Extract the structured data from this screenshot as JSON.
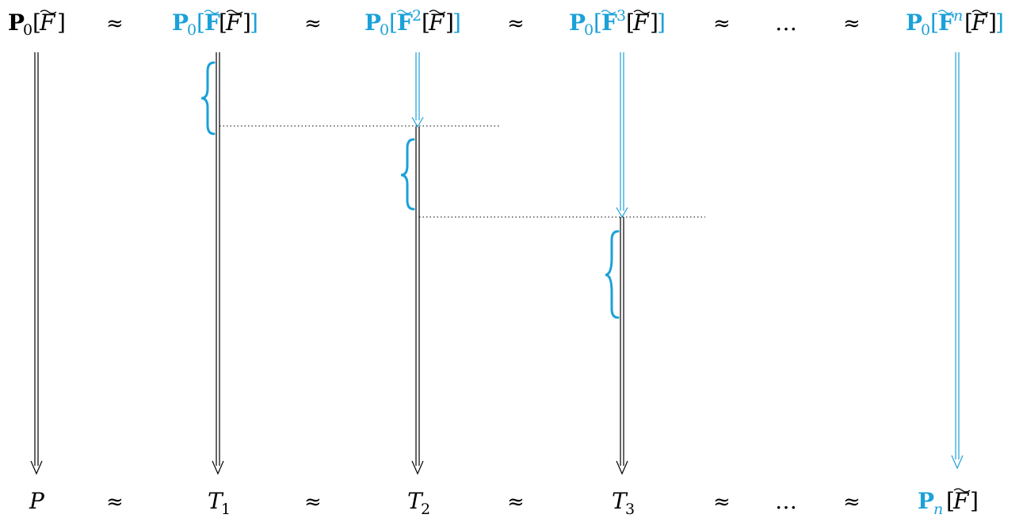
{
  "colors": {
    "black": "#000000",
    "cyan": "#1ba1d9"
  },
  "top_row": {
    "items": [
      {
        "prefix": "P",
        "prefix_sub": "0",
        "power": "",
        "inner": "F",
        "tilde_bold": false,
        "color": "black"
      },
      {
        "prefix": "P",
        "prefix_sub": "0",
        "power": "",
        "inner": "F",
        "tilde_bold": true,
        "color": "cyan"
      },
      {
        "prefix": "P",
        "prefix_sub": "0",
        "power": "2",
        "inner": "F",
        "tilde_bold": true,
        "color": "cyan"
      },
      {
        "prefix": "P",
        "prefix_sub": "0",
        "power": "3",
        "inner": "F",
        "tilde_bold": true,
        "color": "cyan"
      },
      {
        "ellipsis": "…"
      },
      {
        "prefix": "P",
        "prefix_sub": "0",
        "power": "n",
        "inner": "F",
        "tilde_bold": true,
        "color": "cyan"
      }
    ],
    "approx_symbol": "≈"
  },
  "bottom_row": {
    "items": [
      {
        "main": "P",
        "sub": ""
      },
      {
        "main": "T",
        "sub": "1"
      },
      {
        "main": "T",
        "sub": "2"
      },
      {
        "main": "T",
        "sub": "3"
      },
      {
        "ellipsis": "…"
      },
      {
        "main": "P",
        "sub": "n",
        "tail": "F"
      }
    ],
    "approx_symbol": "≈"
  }
}
